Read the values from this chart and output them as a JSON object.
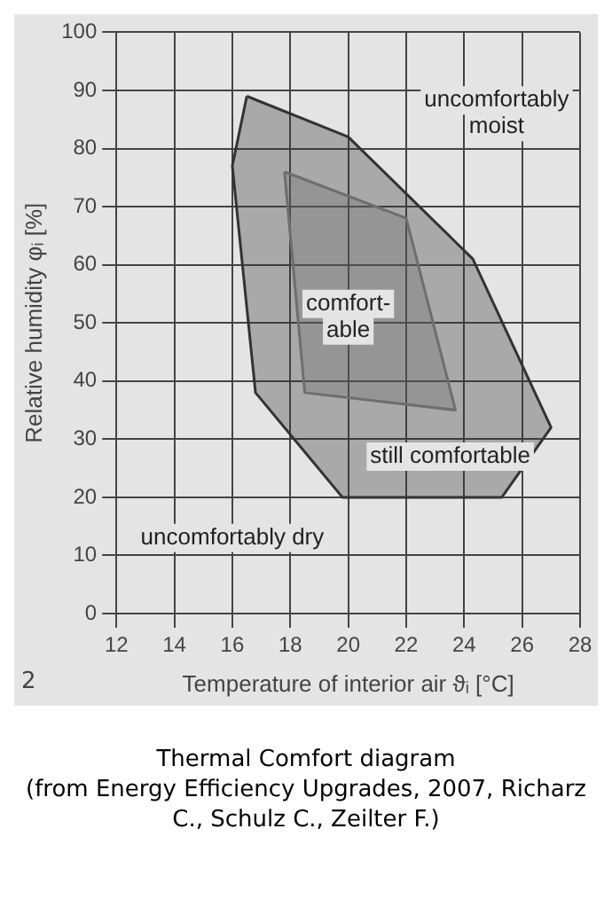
{
  "chart_data": {
    "type": "area",
    "title": "Thermal Comfort diagram",
    "subtitle": "(from Energy Efficiency Upgrades, 2007, Richarz C., Schulz C., Zeilter F.)",
    "xlabel": "Temperature of interior air ϑᵢ [°C]",
    "ylabel": "Relative humidity φᵢ [%]",
    "series": [
      {
        "color": "#333333",
        "x": [
          16.5,
          20,
          24.3,
          27,
          25.3,
          19.8,
          16.8,
          16,
          16.5
        ],
        "values": [
          89,
          82,
          61,
          32,
          20,
          20,
          38,
          77,
          89
        ]
      },
      {
        "color": "#8c8c8c",
        "x": [
          17.8,
          22,
          23.7,
          18.5,
          17.8
        ],
        "values": [
          76,
          68,
          35,
          38,
          76
        ]
      }
    ],
    "annotations": [
      "uncomfortably moist",
      "comfort- able",
      "still comfortable",
      "uncomfortably dry",
      "2"
    ],
    "xlim": [
      12,
      28
    ],
    "xticks": [
      12,
      14,
      16,
      18,
      20,
      22,
      24,
      26,
      28
    ],
    "ylim": [
      0,
      100
    ],
    "yticks": [
      0,
      10,
      20,
      30,
      40,
      50,
      60,
      70,
      80,
      90,
      100
    ],
    "grid": true,
    "legend": false
  }
}
